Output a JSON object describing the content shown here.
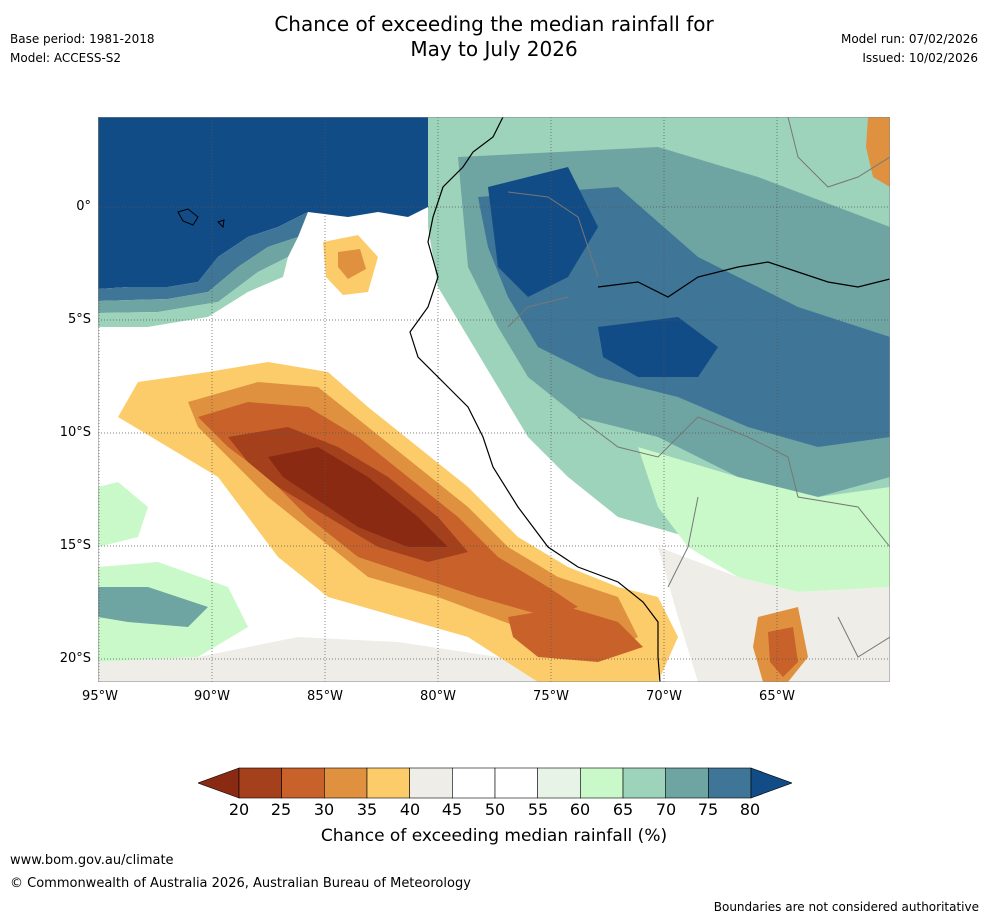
{
  "header": {
    "title_line1": "Chance of exceeding the median rainfall for",
    "title_line2": "May to July 2026",
    "base_period": "Base period: 1981-2018",
    "model": "Model: ACCESS-S2",
    "model_run": "Model run: 07/02/2026",
    "issued": "Issued: 10/02/2026"
  },
  "map": {
    "lat_labels": [
      "0°",
      "5°S",
      "10°S",
      "15°S",
      "20°S"
    ],
    "lon_labels": [
      "95°W",
      "90°W",
      "85°W",
      "80°W",
      "75°W",
      "70°W",
      "65°W"
    ]
  },
  "legend": {
    "ticks": [
      "20",
      "25",
      "30",
      "35",
      "40",
      "45",
      "50",
      "55",
      "60",
      "65",
      "70",
      "75",
      "80"
    ],
    "title": "Chance of exceeding median rainfall (%)",
    "colors": [
      "#8b2a12",
      "#a5401c",
      "#c8622a",
      "#e0913f",
      "#fdcc6a",
      "#efede8",
      "#ffffff",
      "#ffffff",
      "#e7f3e6",
      "#c9f9c8",
      "#9dd3ba",
      "#6ea4a2",
      "#3f7597",
      "#124c86"
    ]
  },
  "footer": {
    "website": "www.bom.gov.au/climate",
    "copyright": "© Commonwealth of Australia 2026, Australian Bureau of Meteorology",
    "disclaimer": "Boundaries are not considered authoritative"
  }
}
